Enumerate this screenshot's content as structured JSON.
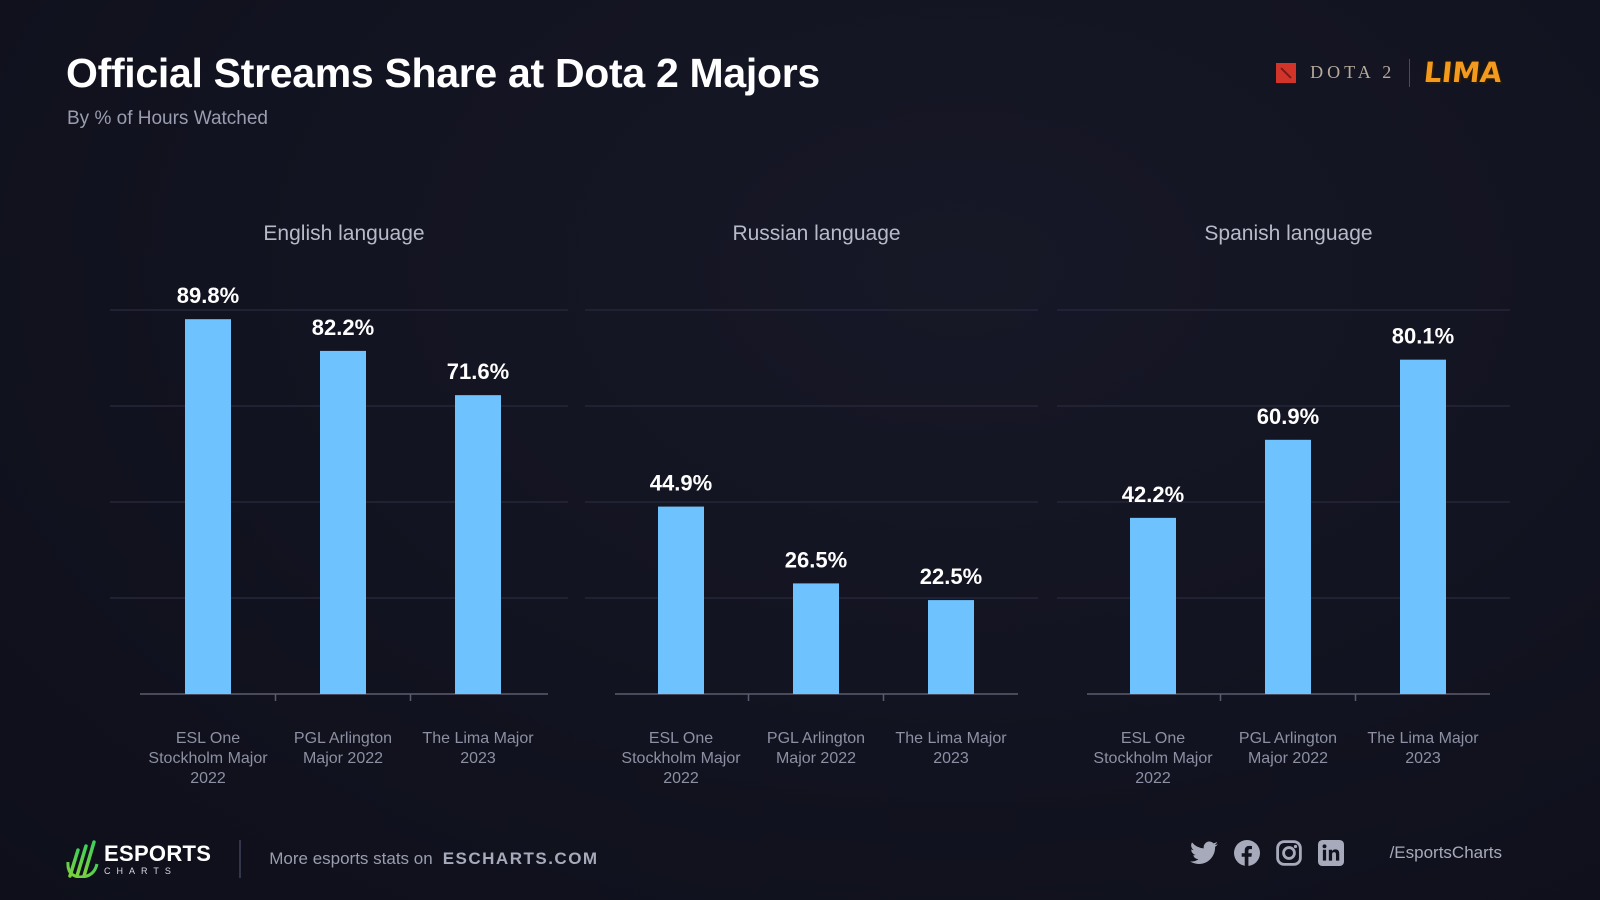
{
  "header": {
    "title": "Official Streams Share at Dota 2 Majors",
    "subtitle": "By % of Hours Watched",
    "logo_dota": "DOTA 2",
    "logo_lima": "LIMA"
  },
  "colors": {
    "bar": "#6ec2fd",
    "background": "#12131f",
    "brand_green": "#5fd13b"
  },
  "chart_data": [
    {
      "type": "bar",
      "title": "English language",
      "categories": [
        "ESL One Stockholm Major 2022",
        "PGL Arlington Major 2022",
        "The Lima Major 2023"
      ],
      "category_lines": [
        [
          "ESL One",
          "Stockholm Major",
          "2022"
        ],
        [
          "PGL Arlington",
          "Major 2022"
        ],
        [
          "The Lima Major",
          "2023"
        ]
      ],
      "values": [
        89.8,
        82.2,
        71.6
      ],
      "labels": [
        "89.8%",
        "82.2%",
        "71.6%"
      ],
      "xlabel": "",
      "ylabel": "",
      "ylim": [
        0,
        92
      ],
      "grid": true
    },
    {
      "type": "bar",
      "title": "Russian language",
      "categories": [
        "ESL One Stockholm Major 2022",
        "PGL Arlington Major 2022",
        "The Lima Major 2023"
      ],
      "category_lines": [
        [
          "ESL One",
          "Stockholm Major",
          "2022"
        ],
        [
          "PGL Arlington",
          "Major 2022"
        ],
        [
          "The Lima Major",
          "2023"
        ]
      ],
      "values": [
        44.9,
        26.5,
        22.5
      ],
      "labels": [
        "44.9%",
        "26.5%",
        "22.5%"
      ],
      "xlabel": "",
      "ylabel": "",
      "ylim": [
        0,
        92
      ],
      "grid": true
    },
    {
      "type": "bar",
      "title": "Spanish language",
      "categories": [
        "ESL One Stockholm Major 2022",
        "PGL Arlington Major 2022",
        "The Lima Major 2023"
      ],
      "category_lines": [
        [
          "ESL One",
          "Stockholm Major",
          "2022"
        ],
        [
          "PGL Arlington",
          "Major 2022"
        ],
        [
          "The Lima Major",
          "2023"
        ]
      ],
      "values": [
        42.2,
        60.9,
        80.1
      ],
      "labels": [
        "42.2%",
        "60.9%",
        "80.1%"
      ],
      "xlabel": "",
      "ylabel": "",
      "ylim": [
        0,
        92
      ],
      "grid": true
    }
  ],
  "footer": {
    "brand_top": "ESPORTS",
    "brand_bottom": "CHARTS",
    "more_text": "More esports stats on",
    "site": "ESCHARTS.COM",
    "social_icons": [
      "twitter-icon",
      "facebook-icon",
      "instagram-icon",
      "linkedin-icon"
    ],
    "handle": "/EsportsCharts"
  }
}
